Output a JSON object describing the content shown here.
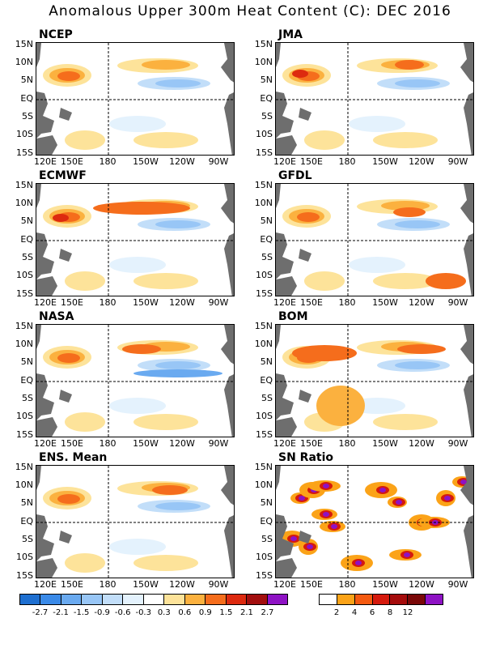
{
  "title": "Anomalous Upper 300m Heat Content (C): DEC 2016",
  "lat_labels": [
    "15N",
    "10N",
    "5N",
    "EQ",
    "5S",
    "10S",
    "15S"
  ],
  "lon_labels": [
    "120E",
    "150E",
    "180",
    "150W",
    "120W",
    "90W"
  ],
  "panels": [
    {
      "name": "NCEP",
      "type": "anom"
    },
    {
      "name": "JMA",
      "type": "anom"
    },
    {
      "name": "ECMWF",
      "type": "anom"
    },
    {
      "name": "GFDL",
      "type": "anom"
    },
    {
      "name": "NASA",
      "type": "anom"
    },
    {
      "name": "BOM",
      "type": "anom"
    },
    {
      "name": "ENS. Mean",
      "type": "anom"
    },
    {
      "name": "SN Ratio",
      "type": "snr"
    }
  ],
  "colorbar_anom": {
    "colors": [
      "#1e6fd0",
      "#3a8ae8",
      "#6aaaf0",
      "#98c6f6",
      "#c2def9",
      "#e4f2fd",
      "#ffffff",
      "#fde39a",
      "#fbb13f",
      "#f56d1c",
      "#dd2a0f",
      "#a20e0e",
      "#8e12c4"
    ],
    "labels": [
      "-2.7",
      "-2.1",
      "-1.5",
      "-0.9",
      "-0.6",
      "-0.3",
      "0.3",
      "0.6",
      "0.9",
      "1.5",
      "2.1",
      "2.7"
    ]
  },
  "colorbar_snr": {
    "colors": [
      "#ffffff",
      "#fba318",
      "#f55a10",
      "#d51a0d",
      "#a50c0c",
      "#7a0808",
      "#8e12c4"
    ],
    "labels": [
      "2",
      "4",
      "6",
      "8",
      "12"
    ]
  }
}
